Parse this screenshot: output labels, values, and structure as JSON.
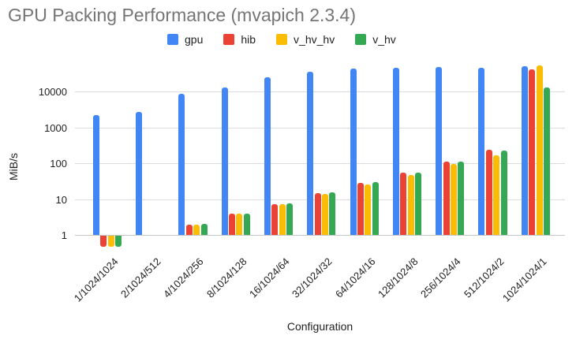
{
  "title": "GPU Packing Performance (mvapich 2.3.4)",
  "chart_data": {
    "type": "bar",
    "title": "GPU Packing Performance (mvapich 2.3.4)",
    "xlabel": "Configuration",
    "ylabel": "MiB/s",
    "y_scale": "log",
    "y_ticks": [
      1,
      10,
      100,
      1000,
      10000
    ],
    "ylim": [
      0.4,
      60000
    ],
    "grid": true,
    "legend_position": "top",
    "categories": [
      "1/1024/1024",
      "2/1024/512",
      "4/1024/256",
      "8/1024/128",
      "16/1024/64",
      "32/1024/32",
      "64/1024/16",
      "128/1024/8",
      "256/1024/4",
      "512/1024/2",
      "1024/1024/1"
    ],
    "series": [
      {
        "name": "gpu",
        "color": "#4285F4",
        "values": [
          2200,
          2700,
          8500,
          13000,
          25000,
          35000,
          43000,
          45000,
          47000,
          45000,
          51000
        ]
      },
      {
        "name": "hib",
        "color": "#EA4335",
        "values": [
          0.5,
          null,
          1.9,
          3.9,
          7.3,
          14.5,
          28,
          54,
          110,
          240,
          41000
        ]
      },
      {
        "name": "v_hv_hv",
        "color": "#FBBC04",
        "values": [
          0.5,
          null,
          1.9,
          4.0,
          7.3,
          14.0,
          26,
          48,
          93,
          165,
          52000
        ]
      },
      {
        "name": "v_hv",
        "color": "#34A853",
        "values": [
          0.5,
          null,
          2.0,
          3.9,
          7.6,
          15.0,
          29,
          55,
          112,
          220,
          13000
        ]
      }
    ]
  },
  "colors": {
    "background": "#ffffff",
    "title_text": "#757575",
    "axis_text": "#212121",
    "gridline": "#dadce0",
    "baseline": "#c4c7c5"
  }
}
